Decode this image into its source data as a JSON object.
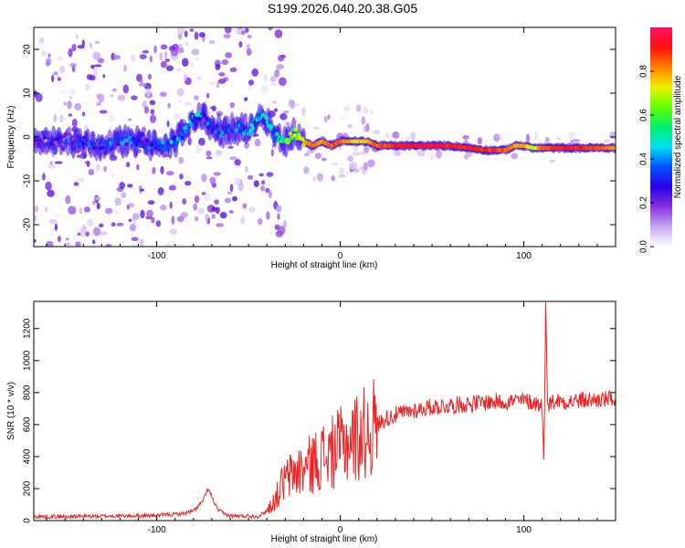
{
  "figure_title": "S199.2026.040.20.38.G05",
  "chart_data": [
    {
      "type": "heatmap",
      "xlabel": "Height of straight line (km)",
      "ylabel": "Frequency (Hz)",
      "xlim": [
        -167,
        150
      ],
      "ylim": [
        -25,
        25
      ],
      "xticks": [
        -100,
        0,
        100
      ],
      "yticks": [
        -20,
        -10,
        0,
        10,
        20
      ],
      "colorbar": {
        "label": "Normalized spectral amplitude",
        "range": [
          0,
          1
        ],
        "ticks": [
          0.0,
          0.2,
          0.4,
          0.6,
          0.8
        ],
        "stops": [
          "#ffffff",
          "#c8a8f0",
          "#8a30e0",
          "#2a00e8",
          "#0050ff",
          "#00e0f0",
          "#00f070",
          "#60ff00",
          "#f0f000",
          "#ff8000",
          "#ff1010",
          "#ff1060"
        ]
      },
      "ridge": {
        "x": [
          -167,
          -150,
          -140,
          -130,
          -120,
          -110,
          -100,
          -95,
          -90,
          -85,
          -80,
          -75,
          -70,
          -65,
          -60,
          -55,
          -50,
          -45,
          -40,
          -35,
          -30,
          -25,
          -20,
          -15,
          -10,
          -5,
          0,
          5,
          10,
          15,
          20,
          30,
          40,
          50,
          60,
          70,
          80,
          90,
          95,
          100,
          105,
          110,
          120,
          130,
          140,
          150
        ],
        "freq": [
          -1,
          -1,
          -1,
          -2,
          -1,
          -1,
          -2,
          -2,
          -1,
          1,
          4,
          5,
          2,
          1,
          2,
          2,
          1,
          5,
          4,
          0,
          -1,
          1,
          -1,
          -2,
          -1,
          -2,
          -1,
          -1,
          -1,
          -1,
          -2,
          -2,
          -2,
          -2,
          -2,
          -2.5,
          -3,
          -3,
          -2,
          -2,
          -2.5,
          -2.5,
          -2.5,
          -2.5,
          -2.5,
          -2.5
        ],
        "amp": [
          0.2,
          0.25,
          0.3,
          0.3,
          0.35,
          0.3,
          0.3,
          0.35,
          0.35,
          0.35,
          0.4,
          0.4,
          0.3,
          0.3,
          0.3,
          0.35,
          0.35,
          0.4,
          0.4,
          0.45,
          0.55,
          0.6,
          0.75,
          0.85,
          0.8,
          0.85,
          0.85,
          0.8,
          0.75,
          0.8,
          0.85,
          0.9,
          0.95,
          0.95,
          0.9,
          0.9,
          0.9,
          0.85,
          0.8,
          0.8,
          0.7,
          0.85,
          0.9,
          0.9,
          0.85,
          0.8
        ]
      }
    },
    {
      "type": "line",
      "xlabel": "Height of straight line (km)",
      "ylabel": "SNR (10 * v/v)",
      "xlim": [
        -167,
        150
      ],
      "ylim": [
        0,
        1370
      ],
      "xticks": [
        -100,
        0,
        100
      ],
      "yticks": [
        0,
        200,
        400,
        600,
        800,
        1000,
        1200
      ],
      "series": [
        {
          "name": "SNR",
          "color": "#ee2222",
          "x": [
            -167,
            -150,
            -130,
            -110,
            -100,
            -90,
            -85,
            -80,
            -75,
            -72,
            -70,
            -67,
            -63,
            -60,
            -55,
            -50,
            -45,
            -40,
            -35,
            -32,
            -30,
            -25,
            -20,
            -15,
            -10,
            -5,
            0,
            5,
            10,
            15,
            20,
            25,
            30,
            40,
            50,
            60,
            70,
            80,
            90,
            100,
            105,
            110,
            111,
            112,
            113,
            114,
            115,
            118,
            125,
            130,
            140,
            150
          ],
          "y": [
            25,
            25,
            28,
            30,
            32,
            40,
            45,
            60,
            120,
            200,
            150,
            70,
            40,
            30,
            28,
            30,
            25,
            60,
            140,
            220,
            250,
            300,
            320,
            360,
            400,
            420,
            460,
            500,
            530,
            560,
            600,
            640,
            660,
            690,
            710,
            720,
            730,
            740,
            745,
            750,
            740,
            720,
            340,
            1370,
            760,
            720,
            740,
            750,
            745,
            750,
            755,
            760
          ]
        }
      ]
    }
  ]
}
